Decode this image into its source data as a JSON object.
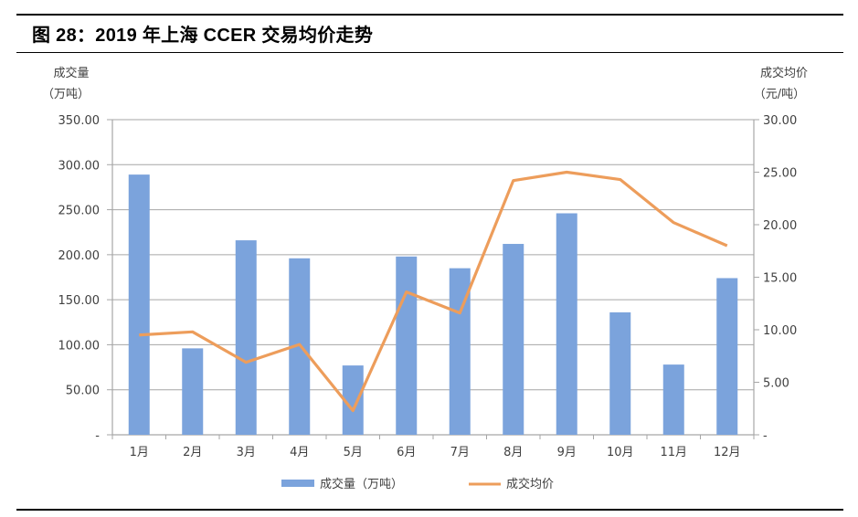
{
  "figure": {
    "title": "图 28：2019 年上海 CCER 交易均价走势"
  },
  "chart_data": {
    "type": "bar+line",
    "title": "2019 年上海 CCER 交易均价走势",
    "categories": [
      "1月",
      "2月",
      "3月",
      "4月",
      "5月",
      "6月",
      "7月",
      "8月",
      "9月",
      "10月",
      "11月",
      "12月"
    ],
    "series": [
      {
        "name": "成交量（万吨）",
        "type": "bar",
        "axis": "left",
        "color": "#7ba3dc",
        "values": [
          289,
          96,
          216,
          196,
          77,
          198,
          185,
          212,
          246,
          136,
          78,
          174
        ]
      },
      {
        "name": "成交均价",
        "type": "line",
        "axis": "right",
        "color": "#ed9d5b",
        "values": [
          9.5,
          9.8,
          6.9,
          8.6,
          2.3,
          13.6,
          11.6,
          24.2,
          25.0,
          24.3,
          20.2,
          18.0
        ]
      }
    ],
    "left_axis": {
      "label_line1": "成交量",
      "label_line2": "（万吨）",
      "ylim": [
        0,
        350
      ],
      "ticks": [
        "-",
        "50.00",
        "100.00",
        "150.00",
        "200.00",
        "250.00",
        "300.00",
        "350.00"
      ]
    },
    "right_axis": {
      "label_line1": "成交均价",
      "label_line2": "（元/吨）",
      "ylim": [
        0,
        30
      ],
      "ticks": [
        "-",
        "5.00",
        "10.00",
        "15.00",
        "20.00",
        "25.00",
        "30.00"
      ]
    },
    "grid": true,
    "legend_position": "bottom"
  }
}
